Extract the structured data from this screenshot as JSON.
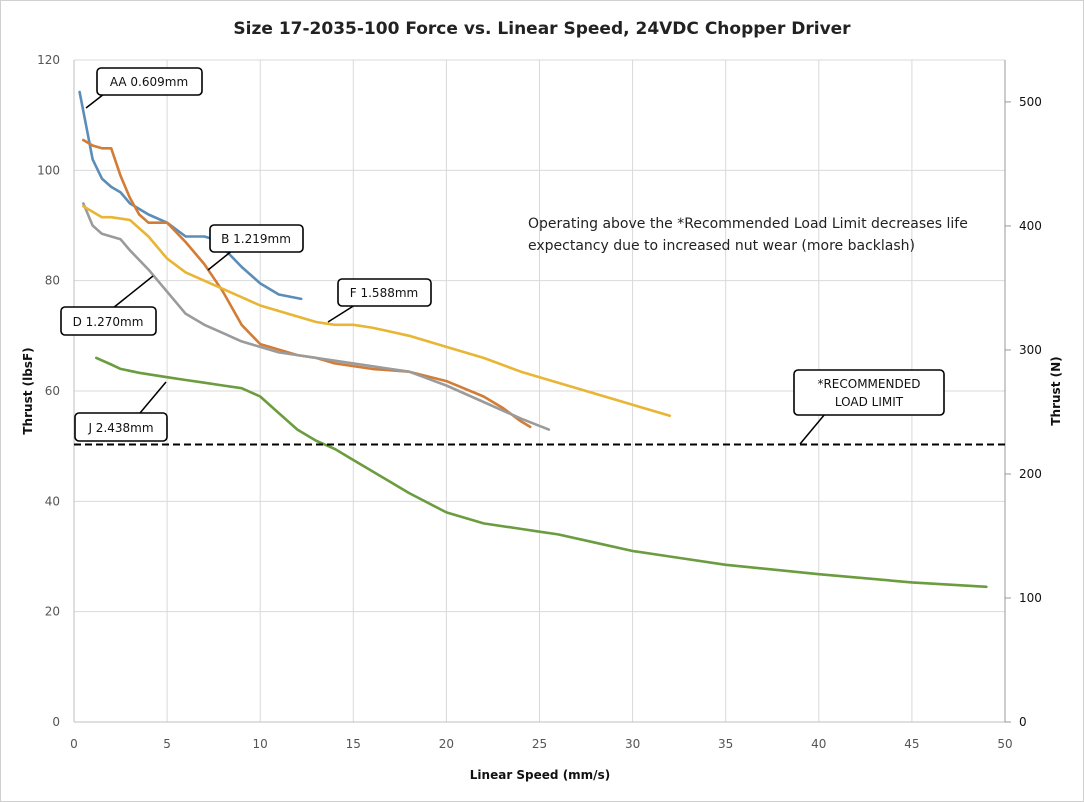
{
  "chart_data": {
    "type": "line",
    "title": "Size 17-2035-100 Force vs. Linear Speed, 24VDC Chopper Driver",
    "xlabel": "Linear Speed (mm/s)",
    "ylabel": "Thrust (lbsF)",
    "y2label": "Thrust (N)",
    "xlim": [
      0,
      50
    ],
    "ylim": [
      0,
      120
    ],
    "y2lim": [
      0,
      533.8
    ],
    "x_ticks": [
      "0",
      "5",
      "10",
      "15",
      "20",
      "25",
      "30",
      "35",
      "40",
      "45",
      "50"
    ],
    "y_ticks": [
      "0",
      "20",
      "40",
      "60",
      "80",
      "100",
      "120"
    ],
    "y2_ticks": [
      "0",
      "100",
      "200",
      "300",
      "400",
      "500"
    ],
    "grid": true,
    "series": [
      {
        "name": "AA 0.609mm",
        "color": "#5b8db8",
        "x": [
          0.3,
          0.6,
          1.0,
          1.5,
          2.0,
          2.5,
          3.0,
          4.0,
          5.0,
          6.0,
          7.0,
          7.5,
          8.0,
          9.0,
          10.0,
          11.0,
          12.2
        ],
        "y": [
          114.2,
          109,
          102,
          98.5,
          97,
          96,
          94,
          92,
          90.5,
          88,
          88,
          87.5,
          86,
          82.5,
          79.5,
          77.5,
          76.7
        ]
      },
      {
        "name": "B 1.219mm",
        "color": "#d27c36",
        "x": [
          0.5,
          1.0,
          1.5,
          2.0,
          2.5,
          3.0,
          3.5,
          4.0,
          5.0,
          6.0,
          7.0,
          8.0,
          9.0,
          10.0,
          11.0,
          12.0,
          13.0,
          14.0,
          16.0,
          18.0,
          20.0,
          22.0,
          23.0,
          24.0,
          24.5
        ],
        "y": [
          105.5,
          104.5,
          104,
          104,
          99,
          95,
          92,
          90.5,
          90.5,
          87,
          83,
          78,
          72,
          68.5,
          67.5,
          66.5,
          66,
          65,
          64,
          63.5,
          61.8,
          59,
          57,
          54.5,
          53.5
        ]
      },
      {
        "name": "D 1.270mm",
        "color": "#9b9b9b",
        "x": [
          0.5,
          1.0,
          1.5,
          2.0,
          2.5,
          3.0,
          4.0,
          5.0,
          6.0,
          7.0,
          8.0,
          9.0,
          10.0,
          11.0,
          12.0,
          14.0,
          16.0,
          18.0,
          20.0,
          22.0,
          24.0,
          25.5
        ],
        "y": [
          94,
          90,
          88.5,
          88,
          87.5,
          85.5,
          82,
          78,
          74,
          72,
          70.5,
          69,
          68,
          67,
          66.5,
          65.5,
          64.5,
          63.5,
          61,
          58,
          55,
          53
        ]
      },
      {
        "name": "F 1.588mm",
        "color": "#e8b534",
        "x": [
          0.5,
          1.0,
          1.5,
          2.0,
          3.0,
          4.0,
          5.0,
          6.0,
          7.0,
          8.0,
          9.0,
          10.0,
          11.0,
          12.0,
          13.0,
          14.0,
          15.0,
          16.0,
          18.0,
          20.0,
          22.0,
          24.0,
          26.0,
          28.0,
          30.0,
          32.0
        ],
        "y": [
          93.5,
          92.5,
          91.5,
          91.5,
          91,
          88,
          84,
          81.5,
          80,
          78.5,
          77,
          75.5,
          74.5,
          73.5,
          72.5,
          72,
          72,
          71.5,
          70,
          68,
          66,
          63.5,
          61.5,
          59.5,
          57.5,
          55.5
        ]
      },
      {
        "name": "J 2.438mm",
        "color": "#6b9c3f",
        "x": [
          1.2,
          2.0,
          2.5,
          3.5,
          5.0,
          6.0,
          7.0,
          8.0,
          9.0,
          10.0,
          11.0,
          12.0,
          13.0,
          14.0,
          15.0,
          16.0,
          18.0,
          20.0,
          22.0,
          24.0,
          25.0,
          26.0,
          28.0,
          30.0,
          32.0,
          35.0,
          40.0,
          45.0,
          49.0
        ],
        "y": [
          66,
          64.8,
          64,
          63.3,
          62.5,
          62,
          61.5,
          61,
          60.5,
          59,
          56,
          53,
          51,
          49.5,
          47.5,
          45.5,
          41.5,
          38,
          36,
          35,
          34.5,
          34,
          32.5,
          31,
          30,
          28.5,
          26.8,
          25.3,
          24.5
        ]
      }
    ],
    "reference_line": {
      "y": 50.3,
      "style": "dashed",
      "color": "#000000"
    },
    "callouts": {
      "aa": "AA 0.609mm",
      "b": "B 1.219mm",
      "d": "D 1.270mm",
      "f": "F 1.588mm",
      "j": "J 2.438mm",
      "limit_line1": "*RECOMMENDED",
      "limit_line2": "LOAD LIMIT"
    },
    "note_line1": "Operating above the *Recommended Load Limit decreases life",
    "note_line2": "expectancy due to increased nut wear (more backlash)"
  }
}
